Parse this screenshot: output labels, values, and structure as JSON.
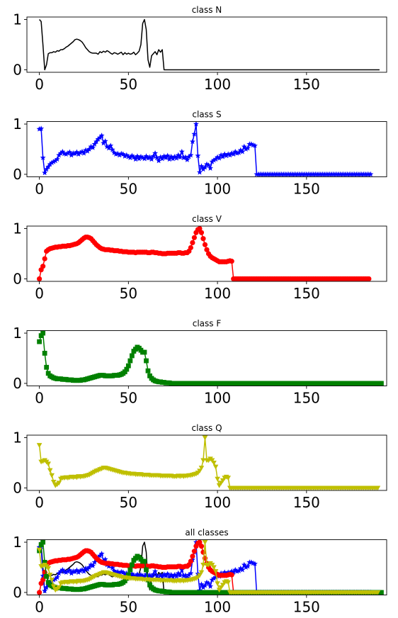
{
  "chart_data": [
    {
      "type": "line",
      "title": "class N",
      "xlim": [
        -7,
        195
      ],
      "ylim": [
        -0.05,
        1.05
      ],
      "xticks": [
        "0",
        "50",
        "100",
        "150"
      ],
      "yticks": [
        "0",
        "1"
      ],
      "color": "#000000",
      "marker": "none",
      "x_start": 0,
      "values": [
        1.0,
        0.96,
        0.5,
        0.0,
        0.1,
        0.32,
        0.34,
        0.34,
        0.36,
        0.35,
        0.38,
        0.37,
        0.4,
        0.4,
        0.42,
        0.45,
        0.47,
        0.5,
        0.53,
        0.56,
        0.6,
        0.61,
        0.6,
        0.58,
        0.55,
        0.5,
        0.44,
        0.4,
        0.36,
        0.34,
        0.33,
        0.33,
        0.33,
        0.31,
        0.36,
        0.34,
        0.37,
        0.35,
        0.38,
        0.36,
        0.33,
        0.31,
        0.34,
        0.33,
        0.31,
        0.33,
        0.35,
        0.3,
        0.34,
        0.31,
        0.33,
        0.31,
        0.32,
        0.35,
        0.3,
        0.33,
        0.37,
        0.5,
        0.92,
        1.0,
        0.8,
        0.2,
        0.05,
        0.28,
        0.32,
        0.36,
        0.3,
        0.4,
        0.35,
        0.4,
        0.0,
        0.0,
        0.0,
        0.0,
        0.0,
        0.0,
        0.0,
        0.0,
        0.0,
        0.0,
        0.0,
        0.0,
        0.0,
        0.0,
        0.0,
        0.0,
        0.0,
        0.0,
        0.0,
        0.0,
        0.0,
        0.0,
        0.0,
        0.0,
        0.0,
        0.0,
        0.0,
        0.0,
        0.0,
        0.0,
        0.0,
        0.0,
        0.0,
        0.0,
        0.0,
        0.0,
        0.0,
        0.0,
        0.0,
        0.0,
        0.0,
        0.0,
        0.0,
        0.0,
        0.0,
        0.0,
        0.0,
        0.0,
        0.0,
        0.0,
        0.0,
        0.0,
        0.0,
        0.0,
        0.0,
        0.0,
        0.0,
        0.0,
        0.0,
        0.0,
        0.0,
        0.0,
        0.0,
        0.0,
        0.0,
        0.0,
        0.0,
        0.0,
        0.0,
        0.0,
        0.0,
        0.0,
        0.0,
        0.0,
        0.0,
        0.0,
        0.0,
        0.0,
        0.0,
        0.0,
        0.0,
        0.0,
        0.0,
        0.0,
        0.0,
        0.0,
        0.0,
        0.0,
        0.0,
        0.0,
        0.0,
        0.0,
        0.0,
        0.0,
        0.0,
        0.0,
        0.0,
        0.0,
        0.0,
        0.0,
        0.0,
        0.0,
        0.0,
        0.0,
        0.0,
        0.0,
        0.0,
        0.0,
        0.0,
        0.0,
        0.0,
        0.0,
        0.0,
        0.0,
        0.0,
        0.0,
        0.0,
        0.0,
        0.0,
        0.0,
        0.0,
        0.0
      ]
    },
    {
      "type": "line",
      "title": "class S",
      "xlim": [
        -7,
        195
      ],
      "ylim": [
        -0.05,
        1.05
      ],
      "xticks": [
        "0",
        "50",
        "100",
        "150"
      ],
      "yticks": [
        "0",
        "1"
      ],
      "color": "#0000ff",
      "marker": "star",
      "x_start": 0,
      "values": [
        0.9,
        0.91,
        0.33,
        0.03,
        0.1,
        0.15,
        0.2,
        0.23,
        0.25,
        0.27,
        0.3,
        0.38,
        0.42,
        0.45,
        0.41,
        0.4,
        0.42,
        0.44,
        0.38,
        0.42,
        0.41,
        0.44,
        0.4,
        0.43,
        0.45,
        0.42,
        0.48,
        0.46,
        0.5,
        0.55,
        0.53,
        0.6,
        0.65,
        0.7,
        0.73,
        0.77,
        0.62,
        0.66,
        0.55,
        0.52,
        0.57,
        0.49,
        0.43,
        0.4,
        0.41,
        0.38,
        0.41,
        0.4,
        0.36,
        0.38,
        0.35,
        0.33,
        0.37,
        0.34,
        0.3,
        0.36,
        0.31,
        0.35,
        0.33,
        0.31,
        0.36,
        0.32,
        0.34,
        0.3,
        0.36,
        0.42,
        0.33,
        0.27,
        0.34,
        0.31,
        0.36,
        0.33,
        0.37,
        0.3,
        0.35,
        0.31,
        0.35,
        0.32,
        0.38,
        0.34,
        0.45,
        0.33,
        0.34,
        0.29,
        0.35,
        0.38,
        0.65,
        0.8,
        1.0,
        0.37,
        0.04,
        0.16,
        0.1,
        0.14,
        0.2,
        0.18,
        0.12,
        0.25,
        0.28,
        0.3,
        0.34,
        0.32,
        0.38,
        0.35,
        0.4,
        0.37,
        0.4,
        0.38,
        0.42,
        0.4,
        0.45,
        0.42,
        0.43,
        0.48,
        0.45,
        0.55,
        0.5,
        0.52,
        0.6,
        0.6,
        0.58,
        0.57,
        0.0,
        0.0,
        0.0,
        0.0,
        0.0,
        0.0,
        0.0,
        0.0,
        0.0,
        0.0,
        0.0,
        0.0,
        0.0,
        0.0,
        0.0,
        0.0,
        0.0,
        0.0,
        0.0,
        0.0,
        0.0,
        0.0,
        0.0,
        0.0,
        0.0,
        0.0,
        0.0,
        0.0,
        0.0,
        0.0,
        0.0,
        0.0,
        0.0,
        0.0,
        0.0,
        0.0,
        0.0,
        0.0,
        0.0,
        0.0,
        0.0,
        0.0,
        0.0,
        0.0,
        0.0,
        0.0,
        0.0,
        0.0,
        0.0,
        0.0,
        0.0,
        0.0,
        0.0,
        0.0,
        0.0,
        0.0,
        0.0,
        0.0,
        0.0,
        0.0,
        0.0,
        0.0,
        0.0,
        0.0,
        0.0
      ]
    },
    {
      "type": "line",
      "title": "class V",
      "xlim": [
        -7,
        195
      ],
      "ylim": [
        -0.05,
        1.05
      ],
      "xticks": [
        "0",
        "50",
        "100",
        "150"
      ],
      "yticks": [
        "0",
        "1"
      ],
      "color": "#ff0000",
      "marker": "circle",
      "x_start": 0,
      "values": [
        0.0,
        0.18,
        0.25,
        0.4,
        0.55,
        0.58,
        0.6,
        0.61,
        0.62,
        0.63,
        0.63,
        0.64,
        0.64,
        0.65,
        0.65,
        0.65,
        0.66,
        0.66,
        0.67,
        0.68,
        0.69,
        0.7,
        0.72,
        0.75,
        0.78,
        0.81,
        0.83,
        0.83,
        0.82,
        0.8,
        0.76,
        0.72,
        0.68,
        0.65,
        0.62,
        0.6,
        0.59,
        0.58,
        0.58,
        0.58,
        0.57,
        0.57,
        0.56,
        0.56,
        0.56,
        0.55,
        0.55,
        0.54,
        0.54,
        0.54,
        0.53,
        0.53,
        0.53,
        0.53,
        0.52,
        0.53,
        0.53,
        0.53,
        0.53,
        0.53,
        0.53,
        0.52,
        0.52,
        0.53,
        0.53,
        0.52,
        0.52,
        0.51,
        0.51,
        0.5,
        0.5,
        0.5,
        0.51,
        0.51,
        0.51,
        0.51,
        0.51,
        0.51,
        0.52,
        0.52,
        0.51,
        0.51,
        0.52,
        0.52,
        0.55,
        0.62,
        0.72,
        0.82,
        0.92,
        0.98,
        1.0,
        0.92,
        0.8,
        0.68,
        0.58,
        0.5,
        0.45,
        0.42,
        0.4,
        0.38,
        0.36,
        0.34,
        0.34,
        0.34,
        0.34,
        0.34,
        0.35,
        0.36,
        0.35,
        0.0,
        0.0,
        0.0,
        0.0,
        0.0,
        0.0,
        0.0,
        0.0,
        0.0,
        0.0,
        0.0,
        0.0,
        0.0,
        0.0,
        0.0,
        0.0,
        0.0,
        0.0,
        0.0,
        0.0,
        0.0,
        0.0,
        0.0,
        0.0,
        0.0,
        0.0,
        0.0,
        0.0,
        0.0,
        0.0,
        0.0,
        0.0,
        0.0,
        0.0,
        0.0,
        0.0,
        0.0,
        0.0,
        0.0,
        0.0,
        0.0,
        0.0,
        0.0,
        0.0,
        0.0,
        0.0,
        0.0,
        0.0,
        0.0,
        0.0,
        0.0,
        0.0,
        0.0,
        0.0,
        0.0,
        0.0,
        0.0,
        0.0,
        0.0,
        0.0,
        0.0,
        0.0,
        0.0,
        0.0,
        0.0,
        0.0,
        0.0,
        0.0,
        0.0,
        0.0,
        0.0,
        0.0,
        0.0,
        0.0,
        0.0,
        0.0,
        0.0
      ]
    },
    {
      "type": "line",
      "title": "class F",
      "xlim": [
        -7,
        195
      ],
      "ylim": [
        -0.05,
        1.05
      ],
      "xticks": [
        "0",
        "50",
        "100",
        "150"
      ],
      "yticks": [
        "0",
        "1"
      ],
      "color": "#008000",
      "marker": "square",
      "x_start": 0,
      "values": [
        0.83,
        0.95,
        1.0,
        0.6,
        0.32,
        0.2,
        0.15,
        0.13,
        0.11,
        0.1,
        0.09,
        0.09,
        0.09,
        0.08,
        0.08,
        0.08,
        0.07,
        0.07,
        0.07,
        0.06,
        0.06,
        0.06,
        0.06,
        0.06,
        0.07,
        0.07,
        0.08,
        0.09,
        0.1,
        0.11,
        0.12,
        0.13,
        0.14,
        0.15,
        0.16,
        0.16,
        0.16,
        0.15,
        0.15,
        0.15,
        0.15,
        0.15,
        0.16,
        0.16,
        0.16,
        0.17,
        0.18,
        0.2,
        0.23,
        0.28,
        0.35,
        0.45,
        0.55,
        0.64,
        0.68,
        0.72,
        0.7,
        0.66,
        0.62,
        0.62,
        0.45,
        0.25,
        0.15,
        0.1,
        0.07,
        0.05,
        0.04,
        0.03,
        0.03,
        0.02,
        0.02,
        0.01,
        0.01,
        0.01,
        0.0,
        0.0,
        0.0,
        0.0,
        0.0,
        0.0,
        0.0,
        0.0,
        0.0,
        0.0,
        0.0,
        0.0,
        0.0,
        0.0,
        0.0,
        0.0,
        0.0,
        0.0,
        0.0,
        0.0,
        0.0,
        0.0,
        0.0,
        0.0,
        0.0,
        0.0,
        0.0,
        0.0,
        0.0,
        0.0,
        0.0,
        0.0,
        0.0,
        0.0,
        0.0,
        0.0,
        0.0,
        0.0,
        0.0,
        0.0,
        0.0,
        0.0,
        0.0,
        0.0,
        0.0,
        0.0,
        0.0,
        0.0,
        0.0,
        0.0,
        0.0,
        0.0,
        0.0,
        0.0,
        0.0,
        0.0,
        0.0,
        0.0,
        0.0,
        0.0,
        0.0,
        0.0,
        0.0,
        0.0,
        0.0,
        0.0,
        0.0,
        0.0,
        0.0,
        0.0,
        0.0,
        0.0,
        0.0,
        0.0,
        0.0,
        0.0,
        0.0,
        0.0,
        0.0,
        0.0,
        0.0,
        0.0,
        0.0,
        0.0,
        0.0,
        0.0,
        0.0,
        0.0,
        0.0,
        0.0,
        0.0,
        0.0,
        0.0,
        0.0,
        0.0,
        0.0,
        0.0,
        0.0,
        0.0,
        0.0,
        0.0,
        0.0,
        0.0,
        0.0,
        0.0,
        0.0,
        0.0,
        0.0,
        0.0,
        0.0,
        0.0,
        0.0,
        0.0,
        0.0,
        0.0,
        0.0,
        0.0,
        0.0,
        0.0
      ]
    },
    {
      "type": "line",
      "title": "class Q",
      "xlim": [
        -7,
        195
      ],
      "ylim": [
        -0.05,
        1.05
      ],
      "xticks": [
        "0",
        "50",
        "100",
        "150"
      ],
      "yticks": [
        "0",
        "1"
      ],
      "color": "#bfbf00",
      "marker": "triangle-down",
      "x_start": 0,
      "values": [
        0.85,
        0.52,
        0.53,
        0.55,
        0.52,
        0.48,
        0.35,
        0.25,
        0.12,
        0.05,
        0.07,
        0.1,
        0.18,
        0.2,
        0.2,
        0.21,
        0.2,
        0.21,
        0.22,
        0.21,
        0.22,
        0.21,
        0.23,
        0.22,
        0.23,
        0.23,
        0.24,
        0.25,
        0.26,
        0.28,
        0.3,
        0.32,
        0.34,
        0.35,
        0.37,
        0.38,
        0.4,
        0.4,
        0.39,
        0.38,
        0.37,
        0.36,
        0.35,
        0.34,
        0.33,
        0.32,
        0.31,
        0.3,
        0.3,
        0.29,
        0.29,
        0.28,
        0.28,
        0.28,
        0.27,
        0.27,
        0.27,
        0.27,
        0.26,
        0.26,
        0.26,
        0.26,
        0.25,
        0.25,
        0.25,
        0.25,
        0.25,
        0.25,
        0.24,
        0.24,
        0.24,
        0.24,
        0.24,
        0.24,
        0.24,
        0.23,
        0.23,
        0.23,
        0.24,
        0.23,
        0.24,
        0.23,
        0.24,
        0.24,
        0.25,
        0.25,
        0.26,
        0.27,
        0.28,
        0.3,
        0.34,
        0.4,
        0.55,
        1.0,
        0.55,
        0.55,
        0.58,
        0.55,
        0.5,
        0.42,
        0.18,
        0.05,
        0.1,
        0.15,
        0.2,
        0.22,
        0.2,
        0.0,
        0.0,
        0.0,
        0.0,
        0.0,
        0.0,
        0.0,
        0.0,
        0.0,
        0.0,
        0.0,
        0.0,
        0.0,
        0.0,
        0.0,
        0.0,
        0.0,
        0.0,
        0.0,
        0.0,
        0.0,
        0.0,
        0.0,
        0.0,
        0.0,
        0.0,
        0.0,
        0.0,
        0.0,
        0.0,
        0.0,
        0.0,
        0.0,
        0.0,
        0.0,
        0.0,
        0.0,
        0.0,
        0.0,
        0.0,
        0.0,
        0.0,
        0.0,
        0.0,
        0.0,
        0.0,
        0.0,
        0.0,
        0.0,
        0.0,
        0.0,
        0.0,
        0.0,
        0.0,
        0.0,
        0.0,
        0.0,
        0.0,
        0.0,
        0.0,
        0.0,
        0.0,
        0.0,
        0.0,
        0.0,
        0.0,
        0.0,
        0.0,
        0.0,
        0.0,
        0.0,
        0.0,
        0.0,
        0.0,
        0.0,
        0.0,
        0.0,
        0.0,
        0.0,
        0.0,
        0.0,
        0.0,
        0.0,
        0.0
      ]
    },
    {
      "type": "line",
      "title": "all classes",
      "xlim": [
        -7,
        195
      ],
      "ylim": [
        -0.05,
        1.05
      ],
      "xticks": [
        "0",
        "50",
        "100",
        "150"
      ],
      "yticks": [
        "0",
        "1"
      ],
      "series_from": [
        0,
        1,
        2,
        3,
        4
      ]
    }
  ]
}
